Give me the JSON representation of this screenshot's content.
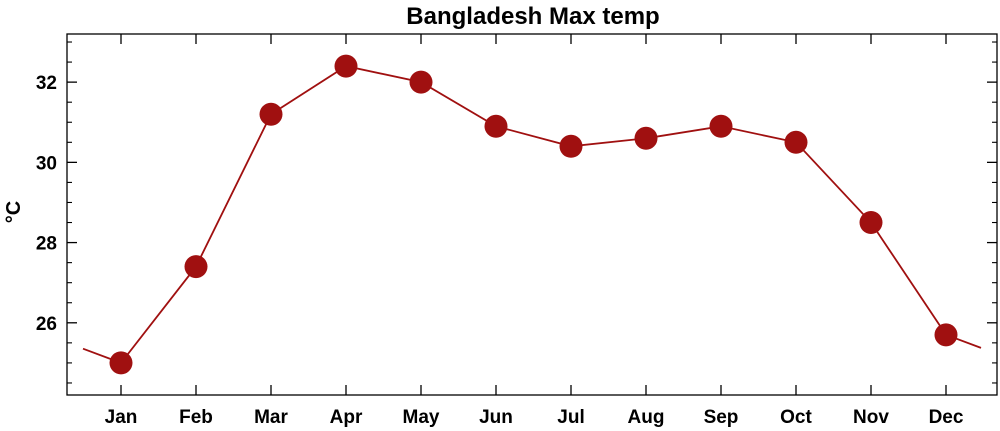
{
  "chart_data": {
    "type": "line",
    "title": "Bangladesh Max temp",
    "xlabel": "",
    "ylabel": "°C",
    "categories": [
      "Jan",
      "Feb",
      "Mar",
      "Apr",
      "May",
      "Jun",
      "Jul",
      "Aug",
      "Sep",
      "Oct",
      "Nov",
      "Dec"
    ],
    "series": [
      {
        "values": [
          25.0,
          27.4,
          31.2,
          32.4,
          32.0,
          30.9,
          30.4,
          30.6,
          30.9,
          30.5,
          28.5,
          25.7
        ]
      }
    ],
    "ylim": [
      24.2,
      33.2
    ],
    "yticks": [
      26,
      28,
      30,
      32
    ],
    "grid": false,
    "cyclic_wrap": true,
    "colors": {
      "line": "#a01010",
      "marker": "#a01010",
      "axis": "#000000"
    }
  }
}
